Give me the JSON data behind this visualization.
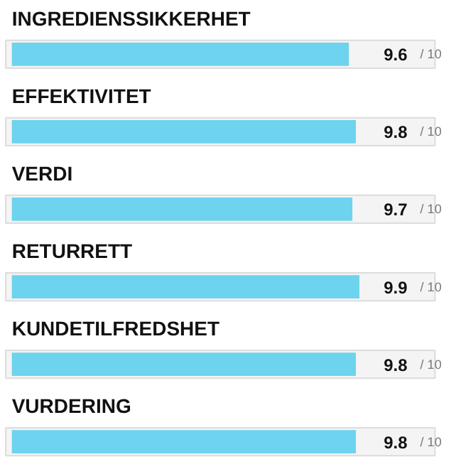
{
  "chart_data": {
    "type": "bar",
    "orientation": "horizontal",
    "categories": [
      "INGREDIENSSIKKERHET",
      "EFFEKTIVITET",
      "VERDI",
      "RETURRETT",
      "KUNDETILFREDSHET",
      "VURDERING"
    ],
    "values": [
      9.6,
      9.8,
      9.7,
      9.9,
      9.8,
      9.8
    ],
    "data_labels": true,
    "annotations": [
      "/ 10",
      "/ 10",
      "/ 10",
      "/ 10",
      "/ 10",
      "/ 10"
    ],
    "color": "#6dd3ee",
    "grid": false
  }
}
